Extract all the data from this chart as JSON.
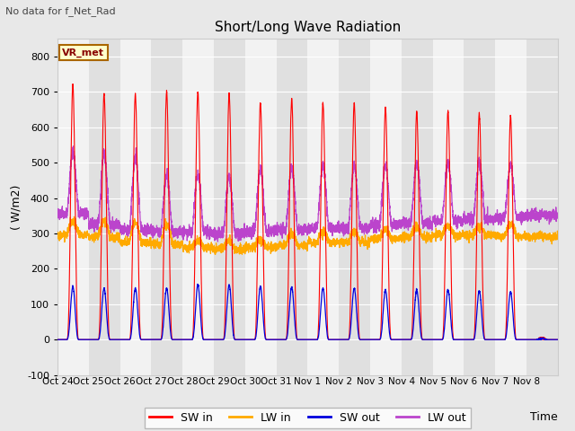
{
  "title": "Short/Long Wave Radiation",
  "xlabel": "Time",
  "ylabel": "( W/m2)",
  "ylim": [
    -100,
    850
  ],
  "yticks": [
    -100,
    0,
    100,
    200,
    300,
    400,
    500,
    600,
    700,
    800
  ],
  "n_days": 16,
  "x_labels": [
    "Oct 24",
    "Oct 25",
    "Oct 26",
    "Oct 27",
    "Oct 28",
    "Oct 29",
    "Oct 30",
    "Oct 31",
    "Nov 1",
    "Nov 2",
    "Nov 3",
    "Nov 4",
    "Nov 5",
    "Nov 6",
    "Nov 7",
    "Nov 8"
  ],
  "no_data_label": "No data for f_Net_Rad",
  "station_label": "VR_met",
  "sw_in_color": "#ff0000",
  "lw_in_color": "#ffaa00",
  "sw_out_color": "#0000dd",
  "lw_out_color": "#bb44cc",
  "fig_bg_color": "#e8e8e8",
  "plot_bg_light": "#f2f2f2",
  "plot_bg_dark": "#e0e0e0",
  "grid_color": "#ffffff",
  "sw_in_peaks": [
    720,
    695,
    695,
    700,
    700,
    695,
    670,
    680,
    670,
    670,
    655,
    645,
    645,
    640,
    630,
    5
  ],
  "sw_out_peaks": [
    150,
    145,
    145,
    145,
    155,
    155,
    150,
    148,
    145,
    145,
    140,
    140,
    140,
    138,
    135,
    3
  ],
  "lw_in_base": [
    295,
    290,
    275,
    270,
    260,
    255,
    260,
    265,
    275,
    275,
    285,
    290,
    295,
    295,
    292,
    290
  ],
  "lw_in_peak": [
    335,
    335,
    330,
    325,
    280,
    280,
    280,
    300,
    305,
    305,
    310,
    315,
    320,
    320,
    325,
    295
  ],
  "lw_out_base": [
    355,
    325,
    310,
    305,
    305,
    300,
    305,
    310,
    315,
    315,
    325,
    330,
    335,
    340,
    345,
    350
  ],
  "lw_out_peak": [
    530,
    525,
    515,
    465,
    465,
    460,
    480,
    485,
    490,
    490,
    490,
    500,
    500,
    500,
    495,
    355
  ]
}
